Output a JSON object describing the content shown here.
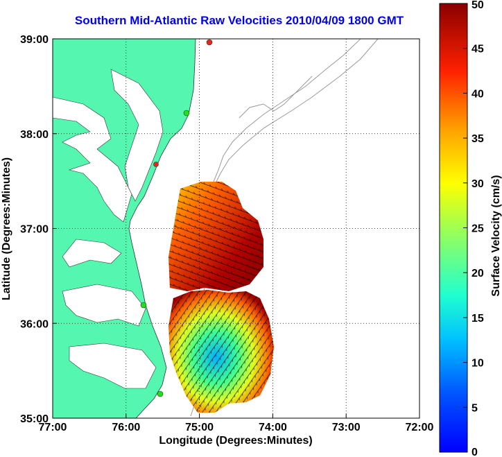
{
  "title": "Southern Mid-Atlantic Raw Velocities 2010/04/09 1800 GMT",
  "xlabel": "Longitude (Degrees:Minutes)",
  "ylabel": "Latitude (Degrees:Minutes)",
  "x_ticks": [
    "77:00",
    "76:00",
    "75:00",
    "74:00",
    "73:00",
    "72:00"
  ],
  "y_ticks": [
    "39:00",
    "38:00",
    "37:00",
    "36:00",
    "35:00"
  ],
  "colorbar": {
    "label": "Surface Velocity (cm/s)",
    "ticks": [
      "0",
      "5",
      "10",
      "15",
      "20",
      "25",
      "30",
      "35",
      "40",
      "45",
      "50"
    ],
    "range": [
      0,
      50
    ]
  },
  "colors": {
    "land": "#55f7b0",
    "title": "#0000ee",
    "bathymetry": "#999999",
    "station_green": "#22dd22",
    "station_red": "#ee2222"
  }
}
